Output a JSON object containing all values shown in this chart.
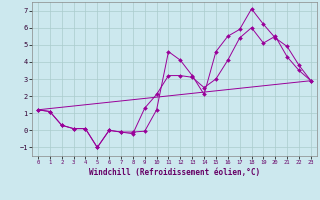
{
  "xlabel": "Windchill (Refroidissement éolien,°C)",
  "bg_color": "#cce8ee",
  "line_color": "#990099",
  "grid_color": "#aacccc",
  "xlim": [
    -0.5,
    23.5
  ],
  "ylim": [
    -1.5,
    7.5
  ],
  "yticks": [
    -1,
    0,
    1,
    2,
    3,
    4,
    5,
    6,
    7
  ],
  "xticks": [
    0,
    1,
    2,
    3,
    4,
    5,
    6,
    7,
    8,
    9,
    10,
    11,
    12,
    13,
    14,
    15,
    16,
    17,
    18,
    19,
    20,
    21,
    22,
    23
  ],
  "line1_x": [
    0,
    1,
    2,
    3,
    4,
    5,
    6,
    7,
    8,
    9,
    10,
    11,
    12,
    13,
    14,
    15,
    16,
    17,
    18,
    19,
    20,
    21,
    22,
    23
  ],
  "line1_y": [
    1.2,
    1.1,
    0.3,
    0.1,
    0.1,
    -1.0,
    0.0,
    -0.1,
    -0.1,
    -0.05,
    1.2,
    4.6,
    4.1,
    3.2,
    2.1,
    4.6,
    5.5,
    5.9,
    7.1,
    6.2,
    5.4,
    4.9,
    3.8,
    2.9
  ],
  "line2_x": [
    0,
    1,
    2,
    3,
    4,
    5,
    6,
    7,
    8,
    9,
    10,
    11,
    12,
    13,
    14,
    15,
    16,
    17,
    18,
    19,
    20,
    21,
    22,
    23
  ],
  "line2_y": [
    1.2,
    1.1,
    0.3,
    0.1,
    0.1,
    -1.0,
    0.0,
    -0.1,
    -0.2,
    1.3,
    2.1,
    3.2,
    3.2,
    3.1,
    2.5,
    3.0,
    4.1,
    5.4,
    6.0,
    5.1,
    5.5,
    4.3,
    3.5,
    2.9
  ],
  "line3_x": [
    0,
    23
  ],
  "line3_y": [
    1.2,
    2.9
  ]
}
